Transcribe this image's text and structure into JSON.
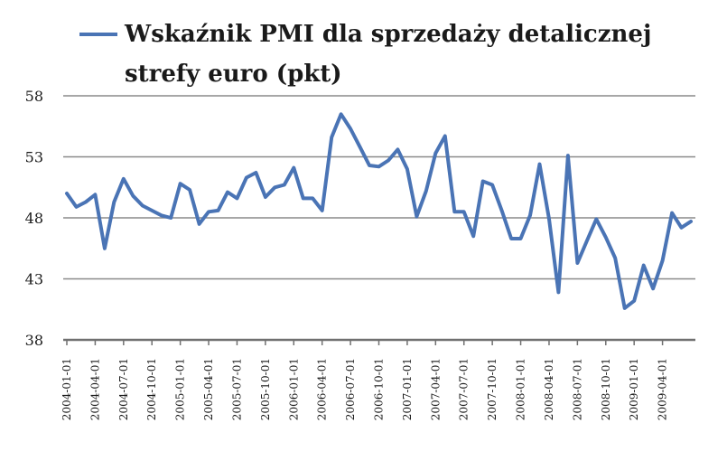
{
  "chart_data": {
    "type": "line",
    "legend": {
      "position": "top",
      "lines": [
        "Wskaźnik PMI dla sprzedaży detalicznej",
        "strefy euro (pkt)"
      ]
    },
    "series": [
      {
        "name": "Wskaźnik PMI dla sprzedaży detalicznej strefy euro (pkt)",
        "color": "#4a74b5",
        "values": [
          50.0,
          48.9,
          49.3,
          49.9,
          45.5,
          49.3,
          51.2,
          49.8,
          49.0,
          48.6,
          48.2,
          48.0,
          50.8,
          50.3,
          47.5,
          48.5,
          48.6,
          50.1,
          49.6,
          51.3,
          51.7,
          49.7,
          50.5,
          50.7,
          52.1,
          49.6,
          49.6,
          48.6,
          54.6,
          56.5,
          55.3,
          53.8,
          52.3,
          52.2,
          52.7,
          53.6,
          52.0,
          48.1,
          50.2,
          53.3,
          54.7,
          48.5,
          48.5,
          46.5,
          51.0,
          50.7,
          48.6,
          46.3,
          46.3,
          48.2,
          52.4,
          47.9,
          41.9,
          53.1,
          44.3,
          46.1,
          47.9,
          46.4,
          44.7,
          40.6,
          41.2,
          44.1,
          42.2,
          44.5,
          48.4,
          47.2,
          47.7
        ]
      }
    ],
    "x_labels": [
      "2004-01-01",
      "2004-04-01",
      "2004-07-01",
      "2004-10-01",
      "2005-01-01",
      "2005-04-01",
      "2005-07-01",
      "2005-10-01",
      "2006-01-01",
      "2006-04-01",
      "2006-07-01",
      "2006-10-01",
      "2007-01-01",
      "2007-04-01",
      "2007-07-01",
      "2007-10-01",
      "2008-01-01",
      "2008-04-01",
      "2008-07-01",
      "2008-10-01",
      "2009-01-01",
      "2009-04-01"
    ],
    "x_label_step": 3,
    "y_ticks": [
      "58",
      "53",
      "48",
      "43",
      "38"
    ],
    "ylim": [
      38,
      58
    ],
    "ytick_values": [
      58,
      53,
      48,
      43,
      38
    ],
    "grid": true,
    "xlabel": "",
    "ylabel": ""
  }
}
